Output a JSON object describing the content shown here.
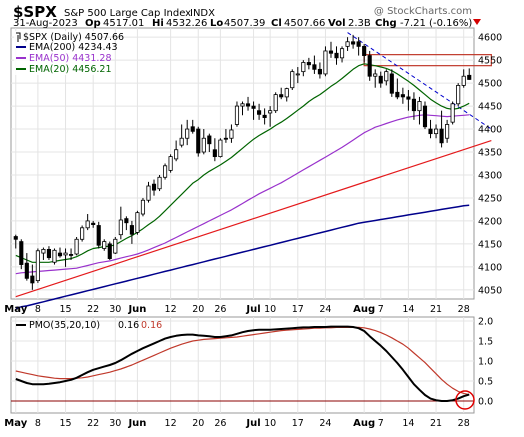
{
  "header": {
    "symbol": "$SPX",
    "name": "S&P 500 Large Cap Index",
    "exchange": "INDX",
    "watermark": "@ StockCharts.com",
    "date": "31-Aug-2023",
    "open_label": "Op",
    "open": "4517.01",
    "high_label": "Hi",
    "high": "4532.26",
    "low_label": "Lo",
    "low": "4507.39",
    "close_label": "Cl",
    "close": "4507.66",
    "vol_label": "Vol",
    "volume": "2.3B",
    "chg_label": "Chg",
    "change": "-7.21 (-0.16%)"
  },
  "colors": {
    "up_candle": "#ffffff",
    "down_candle": "#000000",
    "ema200": "#00008b",
    "ema50": "#9932cc",
    "ema20": "#006400",
    "trendline": "#e41a1c",
    "downtrend": "#0000cd",
    "pmo": "#000000",
    "signal": "#c0392b",
    "grid": "#e4e4e4",
    "panel_bg": "#ffffff",
    "gap_box": "#c0392b"
  },
  "chart_data": [
    {
      "type": "candlestick",
      "legend": {
        "price": "$SPX (Daily) 4507.66",
        "ema200": "EMA(200) 4234.43",
        "ema50": "EMA(50) 4431.28",
        "ema20": "EMA(20) 4456.21"
      },
      "ylim": [
        4030,
        4620
      ],
      "y_ticks": [
        4050,
        4100,
        4150,
        4200,
        4250,
        4300,
        4350,
        4400,
        4450,
        4500,
        4550,
        4600
      ],
      "x_ticks": [
        {
          "i": 0,
          "label": "May",
          "bold": true
        },
        {
          "i": 4,
          "label": "8"
        },
        {
          "i": 9,
          "label": "15"
        },
        {
          "i": 14,
          "label": "22"
        },
        {
          "i": 18,
          "label": "30"
        },
        {
          "i": 22,
          "label": "Jun",
          "bold": true
        },
        {
          "i": 28,
          "label": "12"
        },
        {
          "i": 33,
          "label": "20"
        },
        {
          "i": 37,
          "label": "26"
        },
        {
          "i": 43,
          "label": "Jul",
          "bold": true
        },
        {
          "i": 46,
          "label": "10"
        },
        {
          "i": 51,
          "label": "17"
        },
        {
          "i": 56,
          "label": "24"
        },
        {
          "i": 63,
          "label": "Aug",
          "bold": true
        },
        {
          "i": 66,
          "label": "7"
        },
        {
          "i": 71,
          "label": "14"
        },
        {
          "i": 76,
          "label": "21"
        },
        {
          "i": 81,
          "label": "28"
        }
      ],
      "ohlc": [
        [
          4166,
          4170,
          4140,
          4160
        ],
        [
          4155,
          4160,
          4095,
          4105
        ],
        [
          4108,
          4130,
          4070,
          4075
        ],
        [
          4080,
          4105,
          4050,
          4065
        ],
        [
          4070,
          4140,
          4065,
          4135
        ],
        [
          4130,
          4142,
          4115,
          4138
        ],
        [
          4138,
          4145,
          4115,
          4120
        ],
        [
          4110,
          4140,
          4105,
          4136
        ],
        [
          4130,
          4142,
          4120,
          4124
        ],
        [
          4126,
          4140,
          4100,
          4130
        ],
        [
          4127,
          4140,
          4115,
          4125
        ],
        [
          4128,
          4165,
          4125,
          4160
        ],
        [
          4160,
          4190,
          4155,
          4185
        ],
        [
          4185,
          4215,
          4180,
          4200
        ],
        [
          4195,
          4200,
          4185,
          4192
        ],
        [
          4190,
          4198,
          4140,
          4147
        ],
        [
          4140,
          4160,
          4135,
          4155
        ],
        [
          4150,
          4155,
          4115,
          4118
        ],
        [
          4130,
          4165,
          4128,
          4160
        ],
        [
          4170,
          4231,
          4160,
          4202
        ],
        [
          4205,
          4210,
          4180,
          4196
        ],
        [
          4190,
          4200,
          4150,
          4171
        ],
        [
          4175,
          4222,
          4170,
          4218
        ],
        [
          4215,
          4250,
          4210,
          4245
        ],
        [
          4245,
          4285,
          4240,
          4276
        ],
        [
          4280,
          4290,
          4255,
          4267
        ],
        [
          4270,
          4300,
          4265,
          4295
        ],
        [
          4295,
          4325,
          4290,
          4320
        ],
        [
          4310,
          4345,
          4305,
          4340
        ],
        [
          4335,
          4375,
          4330,
          4355
        ],
        [
          4365,
          4410,
          4360,
          4380
        ],
        [
          4380,
          4420,
          4365,
          4400
        ],
        [
          4405,
          4420,
          4390,
          4395
        ],
        [
          4400,
          4405,
          4340,
          4348
        ],
        [
          4350,
          4400,
          4345,
          4380
        ],
        [
          4385,
          4390,
          4350,
          4368
        ],
        [
          4355,
          4380,
          4330,
          4340
        ],
        [
          4340,
          4380,
          4338,
          4376
        ],
        [
          4380,
          4400,
          4370,
          4378
        ],
        [
          4380,
          4410,
          4370,
          4398
        ],
        [
          4410,
          4460,
          4405,
          4450
        ],
        [
          4450,
          4460,
          4430,
          4455
        ],
        [
          4455,
          4470,
          4440,
          4450
        ],
        [
          4450,
          4460,
          4420,
          4445
        ],
        [
          4440,
          4455,
          4420,
          4432
        ],
        [
          4430,
          4445,
          4410,
          4425
        ],
        [
          4435,
          4450,
          4405,
          4440
        ],
        [
          4440,
          4480,
          4435,
          4475
        ],
        [
          4475,
          4490,
          4465,
          4470
        ],
        [
          4470,
          4490,
          4460,
          4488
        ],
        [
          4490,
          4530,
          4485,
          4525
        ],
        [
          4520,
          4535,
          4500,
          4520
        ],
        [
          4525,
          4550,
          4515,
          4545
        ],
        [
          4545,
          4555,
          4530,
          4540
        ],
        [
          4540,
          4560,
          4520,
          4530
        ],
        [
          4530,
          4545,
          4510,
          4520
        ],
        [
          4520,
          4580,
          4515,
          4570
        ],
        [
          4570,
          4590,
          4555,
          4565
        ],
        [
          4565,
          4580,
          4540,
          4555
        ],
        [
          4555,
          4580,
          4545,
          4575
        ],
        [
          4580,
          4600,
          4570,
          4590
        ],
        [
          4590,
          4605,
          4575,
          4585
        ],
        [
          4590,
          4600,
          4560,
          4580
        ],
        [
          4580,
          4585,
          4545,
          4560
        ],
        [
          4560,
          4570,
          4505,
          4515
        ],
        [
          4515,
          4530,
          4490,
          4520
        ],
        [
          4515,
          4525,
          4490,
          4500
        ],
        [
          4505,
          4530,
          4495,
          4525
        ],
        [
          4520,
          4530,
          4470,
          4478
        ],
        [
          4480,
          4510,
          4465,
          4470
        ],
        [
          4475,
          4490,
          4455,
          4470
        ],
        [
          4470,
          4485,
          4440,
          4465
        ],
        [
          4465,
          4480,
          4420,
          4440
        ],
        [
          4440,
          4470,
          4410,
          4460
        ],
        [
          4450,
          4460,
          4400,
          4405
        ],
        [
          4400,
          4420,
          4380,
          4390
        ],
        [
          4390,
          4410,
          4380,
          4400
        ],
        [
          4400,
          4440,
          4360,
          4370
        ],
        [
          4380,
          4420,
          4370,
          4410
        ],
        [
          4415,
          4460,
          4410,
          4455
        ],
        [
          4455,
          4500,
          4450,
          4495
        ],
        [
          4495,
          4530,
          4490,
          4515
        ],
        [
          4517,
          4532,
          4507,
          4508
        ]
      ],
      "ema200": [
        4010,
        4013,
        4015,
        4018,
        4021,
        4024,
        4027,
        4030,
        4033,
        4036,
        4039,
        4042,
        4045,
        4048,
        4051,
        4054,
        4057,
        4060,
        4063,
        4066,
        4069,
        4072,
        4075,
        4078,
        4081,
        4084,
        4087,
        4090,
        4093,
        4096,
        4099,
        4102,
        4105,
        4108,
        4111,
        4114,
        4117,
        4120,
        4123,
        4126,
        4129,
        4132,
        4135,
        4138,
        4141,
        4144,
        4147,
        4150,
        4153,
        4156,
        4159,
        4162,
        4165,
        4168,
        4171,
        4174,
        4177,
        4180,
        4183,
        4186,
        4189,
        4192,
        4195,
        4197,
        4199,
        4201,
        4203,
        4205,
        4207,
        4209,
        4211,
        4213,
        4215,
        4217,
        4219,
        4221,
        4223,
        4225,
        4227,
        4229,
        4231,
        4233,
        4234
      ],
      "ema50": [
        4085,
        4087,
        4088,
        4089,
        4090,
        4091,
        4092,
        4093,
        4094,
        4095,
        4096,
        4097,
        4100,
        4103,
        4106,
        4109,
        4111,
        4113,
        4116,
        4119,
        4122,
        4125,
        4128,
        4132,
        4137,
        4142,
        4147,
        4152,
        4158,
        4164,
        4170,
        4176,
        4182,
        4188,
        4194,
        4200,
        4206,
        4212,
        4218,
        4224,
        4231,
        4238,
        4245,
        4252,
        4259,
        4265,
        4271,
        4277,
        4283,
        4290,
        4297,
        4304,
        4311,
        4318,
        4325,
        4332,
        4339,
        4346,
        4353,
        4360,
        4368,
        4376,
        4384,
        4392,
        4398,
        4404,
        4408,
        4412,
        4416,
        4420,
        4423,
        4426,
        4428,
        4430,
        4431,
        4430,
        4429,
        4428,
        4427,
        4428,
        4429,
        4430,
        4431
      ],
      "ema20": [
        4125,
        4120,
        4115,
        4110,
        4110,
        4110,
        4110,
        4112,
        4114,
        4116,
        4118,
        4122,
        4128,
        4135,
        4140,
        4142,
        4144,
        4145,
        4148,
        4155,
        4162,
        4168,
        4175,
        4183,
        4192,
        4200,
        4210,
        4222,
        4234,
        4246,
        4258,
        4270,
        4282,
        4290,
        4300,
        4308,
        4315,
        4322,
        4330,
        4338,
        4348,
        4358,
        4368,
        4378,
        4386,
        4393,
        4400,
        4408,
        4415,
        4423,
        4432,
        4441,
        4450,
        4460,
        4468,
        4475,
        4484,
        4493,
        4501,
        4510,
        4520,
        4530,
        4538,
        4542,
        4540,
        4538,
        4535,
        4532,
        4527,
        4520,
        4512,
        4504,
        4495,
        4485,
        4475,
        4465,
        4457,
        4450,
        4445,
        4443,
        4445,
        4450,
        4456
      ],
      "support_line": {
        "from": {
          "i": 0,
          "y": 4035
        },
        "to": {
          "i": 86,
          "y": 4375
        }
      },
      "downtrend_line": {
        "from": {
          "i": 60,
          "y": 4610
        },
        "to": {
          "i": 86,
          "y": 4400
        }
      },
      "gap_zone": {
        "from_i": 63,
        "to_i": 86,
        "y_low": 4538,
        "y_high": 4562
      }
    },
    {
      "type": "line",
      "legend": {
        "label": "PMO(35,20,10)",
        "pmo": "0.16",
        "signal": "0.16"
      },
      "ylim": [
        -0.3,
        2.1
      ],
      "y_ticks": [
        0.0,
        0.5,
        1.0,
        1.5,
        2.0
      ],
      "pmo": [
        0.55,
        0.5,
        0.45,
        0.42,
        0.42,
        0.42,
        0.43,
        0.45,
        0.47,
        0.5,
        0.53,
        0.58,
        0.65,
        0.72,
        0.78,
        0.82,
        0.86,
        0.9,
        0.95,
        1.02,
        1.1,
        1.18,
        1.25,
        1.32,
        1.38,
        1.44,
        1.5,
        1.56,
        1.6,
        1.63,
        1.65,
        1.66,
        1.66,
        1.64,
        1.63,
        1.62,
        1.6,
        1.6,
        1.62,
        1.64,
        1.68,
        1.72,
        1.75,
        1.77,
        1.78,
        1.78,
        1.78,
        1.79,
        1.8,
        1.81,
        1.82,
        1.83,
        1.84,
        1.84,
        1.85,
        1.85,
        1.85,
        1.86,
        1.86,
        1.86,
        1.86,
        1.85,
        1.82,
        1.75,
        1.62,
        1.5,
        1.38,
        1.25,
        1.1,
        0.95,
        0.78,
        0.6,
        0.42,
        0.28,
        0.15,
        0.06,
        0.02,
        0.0,
        0.0,
        0.02,
        0.06,
        0.12,
        0.16
      ],
      "signal": [
        0.75,
        0.72,
        0.69,
        0.66,
        0.63,
        0.61,
        0.59,
        0.57,
        0.56,
        0.56,
        0.56,
        0.57,
        0.58,
        0.6,
        0.63,
        0.66,
        0.69,
        0.72,
        0.76,
        0.8,
        0.85,
        0.9,
        0.96,
        1.02,
        1.08,
        1.14,
        1.2,
        1.26,
        1.32,
        1.37,
        1.42,
        1.46,
        1.5,
        1.52,
        1.54,
        1.55,
        1.56,
        1.57,
        1.58,
        1.59,
        1.6,
        1.62,
        1.64,
        1.66,
        1.68,
        1.7,
        1.72,
        1.74,
        1.76,
        1.77,
        1.78,
        1.79,
        1.8,
        1.81,
        1.82,
        1.82,
        1.83,
        1.83,
        1.84,
        1.84,
        1.84,
        1.84,
        1.84,
        1.83,
        1.8,
        1.76,
        1.71,
        1.65,
        1.58,
        1.5,
        1.42,
        1.32,
        1.2,
        1.08,
        0.96,
        0.82,
        0.68,
        0.54,
        0.42,
        0.32,
        0.24,
        0.19,
        0.16
      ]
    }
  ],
  "pmo_x_ticks": [
    "May",
    "8",
    "15",
    "22",
    "30",
    "Jun",
    "12",
    "20",
    "26",
    "Jul",
    "10",
    "17",
    "24",
    "Aug",
    "7",
    "14",
    "21",
    "28"
  ]
}
